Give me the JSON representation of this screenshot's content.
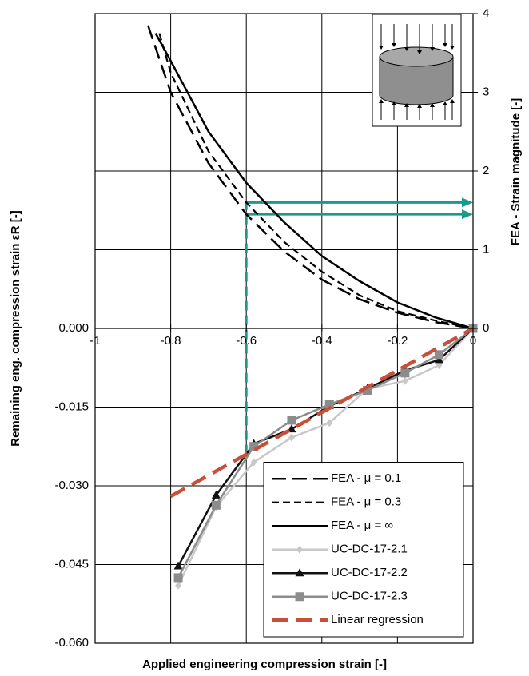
{
  "chart_data": {
    "type": "line",
    "xlabel": "Applied engineering compression strain [-]",
    "ylabel": "Remaining eng. compression strain εR [-]",
    "y2label": "FEA - Strain magnitude [-]",
    "xlim": [
      -1,
      0
    ],
    "xticks": [
      -1,
      -0.8,
      -0.6,
      -0.4,
      -0.2,
      0
    ],
    "ylim": [
      -0.06,
      0.06
    ],
    "yticks": [
      {
        "value": 0,
        "label": "0.000"
      },
      -0.015,
      {
        "value": -0.03,
        "label": "-0.030"
      },
      -0.045,
      {
        "value": -0.06,
        "label": "-0.060"
      }
    ],
    "y2lim": [
      -4,
      4
    ],
    "y2ticks": [
      0,
      1,
      2,
      3,
      4
    ],
    "grid": true,
    "legend": "lower right",
    "series": [
      {
        "name": "FEA - μ = 0.1",
        "color": "#000000",
        "style": "long-dash",
        "axis": "y2",
        "x": [
          -0.86,
          -0.8,
          -0.7,
          -0.6,
          -0.5,
          -0.4,
          -0.3,
          -0.2,
          -0.1,
          0
        ],
        "values": [
          3.85,
          3.0,
          2.1,
          1.45,
          0.98,
          0.62,
          0.37,
          0.2,
          0.08,
          0
        ]
      },
      {
        "name": "FEA - μ = 0.3",
        "color": "#000000",
        "style": "short-dash",
        "axis": "y2",
        "x": [
          -0.83,
          -0.8,
          -0.7,
          -0.6,
          -0.5,
          -0.4,
          -0.3,
          -0.2,
          -0.1,
          0
        ],
        "values": [
          3.75,
          3.25,
          2.25,
          1.6,
          1.1,
          0.72,
          0.42,
          0.22,
          0.1,
          0
        ]
      },
      {
        "name": "FEA - μ = ∞",
        "color": "#000000",
        "style": "solid",
        "axis": "y2",
        "x": [
          -0.84,
          -0.8,
          -0.7,
          -0.6,
          -0.5,
          -0.4,
          -0.3,
          -0.2,
          -0.1,
          0
        ],
        "values": [
          3.75,
          3.4,
          2.5,
          1.85,
          1.35,
          0.92,
          0.6,
          0.33,
          0.14,
          0
        ]
      },
      {
        "name": "UC-DC-17-2.1",
        "color": "#c8c8c8",
        "style": "solid",
        "marker": "diamond",
        "x": [
          -0.78,
          -0.68,
          -0.58,
          -0.48,
          -0.38,
          -0.28,
          -0.18,
          -0.09,
          0
        ],
        "values": [
          -0.049,
          -0.034,
          -0.0255,
          -0.0208,
          -0.018,
          -0.0115,
          -0.01,
          -0.007,
          0
        ]
      },
      {
        "name": "UC-DC-17-2.2",
        "color": "#111111",
        "style": "solid",
        "marker": "triangle",
        "x": [
          -0.78,
          -0.68,
          -0.58,
          -0.48,
          -0.38,
          -0.28,
          -0.18,
          -0.09,
          0
        ],
        "values": [
          -0.0453,
          -0.0318,
          -0.022,
          -0.0192,
          -0.0148,
          -0.0115,
          -0.008,
          -0.006,
          0
        ]
      },
      {
        "name": "UC-DC-17-2.3",
        "color": "#8c8c8c",
        "style": "solid",
        "marker": "square",
        "x": [
          -0.78,
          -0.68,
          -0.58,
          -0.48,
          -0.38,
          -0.28,
          -0.18,
          -0.09,
          0
        ],
        "values": [
          -0.0475,
          -0.0337,
          -0.0225,
          -0.0175,
          -0.0145,
          -0.0118,
          -0.0085,
          -0.005,
          0
        ]
      },
      {
        "name": "Linear regression",
        "color": "#c8503a",
        "style": "regression",
        "x": [
          -0.8,
          0
        ],
        "values": [
          -0.032,
          0
        ]
      }
    ],
    "reference_lines": {
      "color": "#1a9a8a",
      "x": -0.6,
      "y_start": -0.024,
      "y2": [
        1.6,
        1.45
      ]
    }
  }
}
